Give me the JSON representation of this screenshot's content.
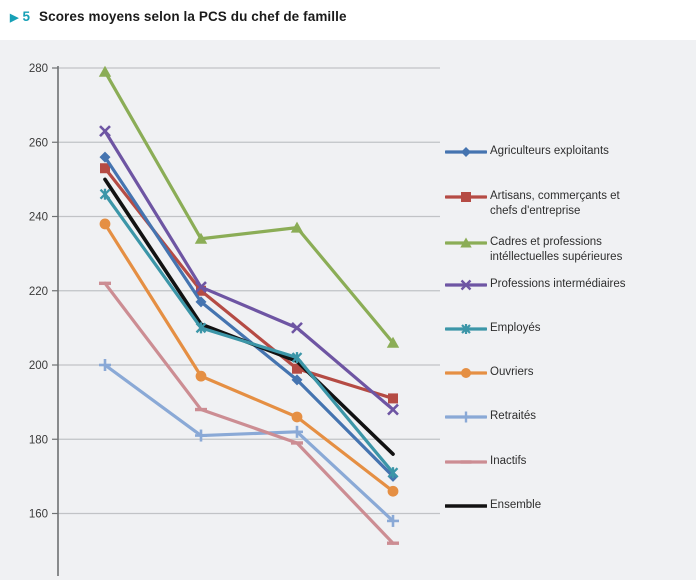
{
  "header": {
    "figure_marker": "▶",
    "figure_number": "5",
    "title": "Scores moyens selon la PCS du chef de famille",
    "accent_color": "#16A0B6"
  },
  "panel": {
    "background": "#f0f1f3"
  },
  "chart_data": {
    "type": "line",
    "title": "Scores moyens selon la PCS du chef de famille",
    "xlabel": "",
    "ylabel": "",
    "x_tick_labels": [
      "",
      "",
      "",
      ""
    ],
    "n_points": 4,
    "yticks": [
      280,
      260,
      240,
      220,
      200,
      180,
      160
    ],
    "ylim": [
      143,
      281
    ],
    "grid": "horizontal",
    "legend_position": "right",
    "axis_color": "#6e7173",
    "gridline_color": "#c1c3c6",
    "tick_label_color": "#3a3a3a",
    "series": [
      {
        "name": "Agriculteurs exploitants",
        "label_lines": [
          "Agriculteurs exploitants"
        ],
        "color": "#4574B0",
        "marker": "diamond",
        "line_width": 3.2,
        "values": [
          256,
          217,
          196,
          170
        ]
      },
      {
        "name": "Artisans, commerçants et chefs d'entreprise",
        "label_lines": [
          "Artisans, commerçants et",
          "chefs d'entreprise"
        ],
        "color": "#B54B44",
        "marker": "square",
        "line_width": 3.2,
        "values": [
          253,
          220,
          199,
          191
        ]
      },
      {
        "name": "Cadres et professions intéllectuelles supérieures",
        "label_lines": [
          "Cadres et professions",
          "intéllectuelles supérieures"
        ],
        "color": "#8BAD56",
        "marker": "triangle",
        "line_width": 3.2,
        "values": [
          279,
          234,
          237,
          206
        ]
      },
      {
        "name": "Professions intermédiaires",
        "label_lines": [
          "Professions intermédiaires"
        ],
        "color": "#6E55A3",
        "marker": "x",
        "line_width": 3.2,
        "values": [
          263,
          221,
          210,
          188
        ]
      },
      {
        "name": "Employés",
        "label_lines": [
          "Employés"
        ],
        "color": "#3C96A8",
        "marker": "asterisk",
        "line_width": 3.2,
        "values": [
          246,
          210,
          202,
          171
        ]
      },
      {
        "name": "Ouvriers",
        "label_lines": [
          "Ouvriers"
        ],
        "color": "#E58F43",
        "marker": "circle",
        "line_width": 3.2,
        "values": [
          238,
          197,
          186,
          166
        ]
      },
      {
        "name": "Retraités",
        "label_lines": [
          "Retraités"
        ],
        "color": "#8AA9D6",
        "marker": "plus",
        "line_width": 3.2,
        "values": [
          200,
          181,
          182,
          158
        ]
      },
      {
        "name": "Inactifs",
        "label_lines": [
          "Inactifs"
        ],
        "color": "#CC8D93",
        "marker": "dash",
        "line_width": 3.2,
        "values": [
          222,
          188,
          179,
          152
        ]
      },
      {
        "name": "Ensemble",
        "label_lines": [
          "Ensemble"
        ],
        "color": "#121212",
        "marker": "none",
        "line_width": 3.6,
        "values": [
          250,
          211,
          201,
          176
        ]
      }
    ]
  }
}
